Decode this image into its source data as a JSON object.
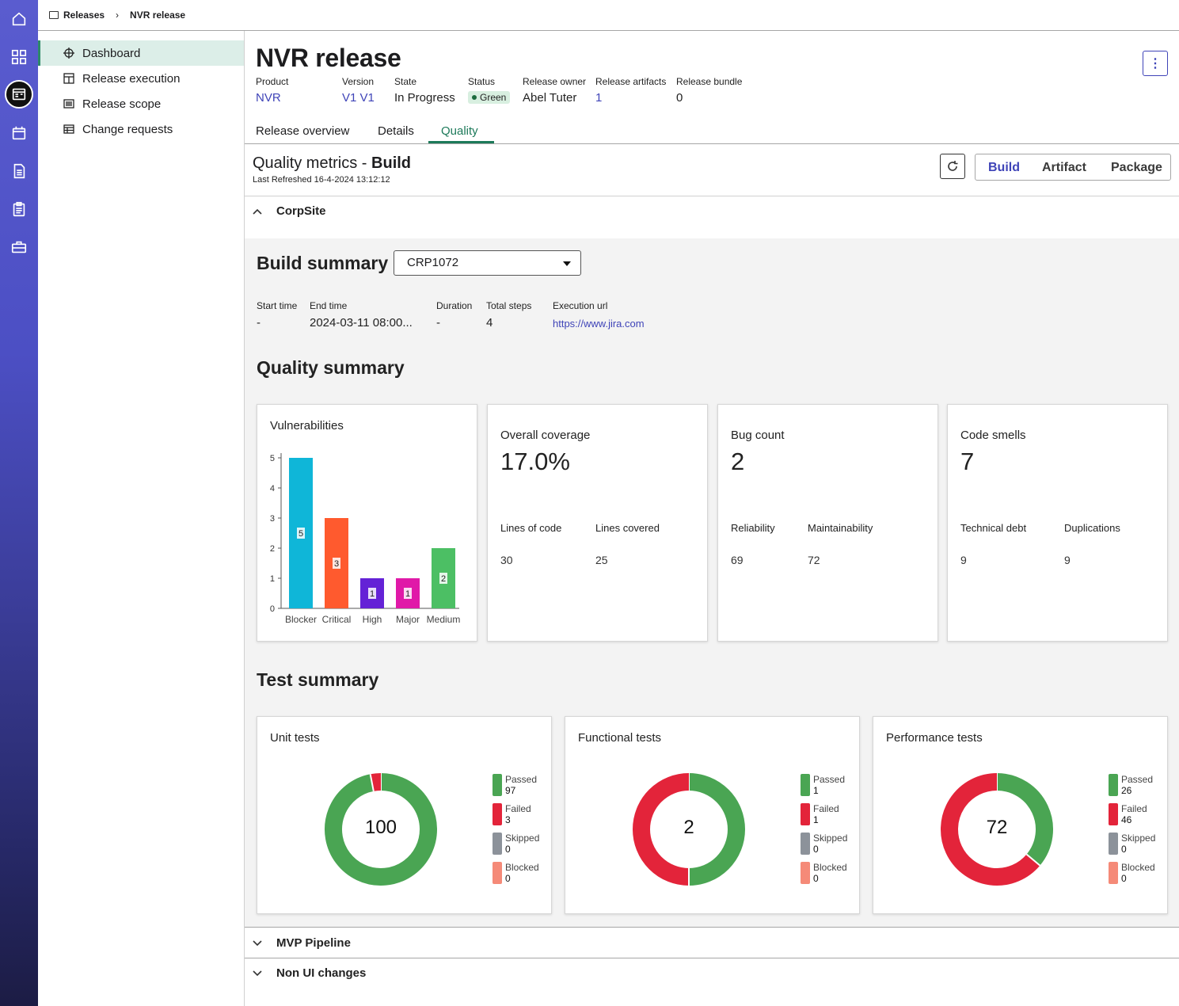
{
  "breadcrumb": {
    "root": "Releases",
    "current": "NVR release"
  },
  "sidebar": {
    "items": [
      {
        "label": "Dashboard",
        "icon": "crosshair-icon",
        "active": true
      },
      {
        "label": "Release execution",
        "icon": "layout-icon"
      },
      {
        "label": "Release scope",
        "icon": "list-icon"
      },
      {
        "label": "Change requests",
        "icon": "grid-table-icon"
      }
    ]
  },
  "release": {
    "title": "NVR release",
    "product_label": "Product",
    "product": "NVR",
    "version_label": "Version",
    "version": "V1 V1",
    "state_label": "State",
    "state": "In Progress",
    "status_label": "Status",
    "status": "Green",
    "owner_label": "Release owner",
    "owner": "Abel Tuter",
    "artifacts_label": "Release artifacts",
    "artifacts": "1",
    "bundle_label": "Release bundle",
    "bundle": "0"
  },
  "tabs": {
    "overview": "Release overview",
    "details": "Details",
    "quality": "Quality"
  },
  "quality": {
    "title_prefix": "Quality metrics -",
    "title_scope": "Build",
    "last_refreshed": "Last Refreshed 16-4-2024 13:12:12",
    "segments": {
      "build": "Build",
      "artifact": "Artifact",
      "package": "Package"
    }
  },
  "sections": {
    "corpsite": "CorpSite",
    "mvp": "MVP Pipeline",
    "nonui": "Non UI changes"
  },
  "build_summary": {
    "heading": "Build summary",
    "selected_build": "CRP1072",
    "start_label": "Start time",
    "start": "-",
    "end_label": "End time",
    "end": "2024-03-11 08:00...",
    "duration_label": "Duration",
    "duration": "-",
    "steps_label": "Total steps",
    "steps": "4",
    "url_label": "Execution url",
    "url": "https://www.jira.com"
  },
  "quality_summary": {
    "heading": "Quality summary",
    "vulnerabilities_title": "Vulnerabilities",
    "coverage": {
      "title": "Overall coverage",
      "value": "17.0%",
      "l1": "Lines of code",
      "v1": "30",
      "l2": "Lines covered",
      "v2": "25"
    },
    "bugs": {
      "title": "Bug count",
      "value": "2",
      "l1": "Reliability",
      "v1": "69",
      "l2": "Maintainability",
      "v2": "72"
    },
    "smells": {
      "title": "Code smells",
      "value": "7",
      "l1": "Technical debt",
      "v1": "9",
      "l2": "Duplications",
      "v2": "9"
    }
  },
  "test_summary": {
    "heading": "Test summary",
    "unit": {
      "title": "Unit tests",
      "total": "100",
      "passed": "97",
      "failed": "3",
      "skipped": "0",
      "blocked": "0"
    },
    "functional": {
      "title": "Functional tests",
      "total": "2",
      "passed": "1",
      "failed": "1",
      "skipped": "0",
      "blocked": "0"
    },
    "performance": {
      "title": "Performance tests",
      "total": "72",
      "passed": "26",
      "failed": "46",
      "skipped": "0",
      "blocked": "0"
    },
    "legend_labels": {
      "passed": "Passed",
      "failed": "Failed",
      "skipped": "Skipped",
      "blocked": "Blocked"
    }
  },
  "colors": {
    "accent": "#3f44b8",
    "tab_active": "#1d7a5a",
    "passed": "#4aa553",
    "failed": "#e3243a",
    "skipped": "#8c929a",
    "blocked": "#f58a78"
  },
  "chart_data": [
    {
      "type": "bar",
      "title": "Vulnerabilities",
      "categories": [
        "Blocker",
        "Critical",
        "High",
        "Major",
        "Medium"
      ],
      "values": [
        5,
        3,
        1,
        1,
        2
      ],
      "colors": [
        "#0fb6d8",
        "#ff5a2e",
        "#6422d6",
        "#e019a8",
        "#4cbf64"
      ],
      "ylim": [
        0,
        5
      ],
      "yticks": [
        0,
        1,
        2,
        3,
        4,
        5
      ]
    },
    {
      "type": "pie",
      "title": "Unit tests",
      "categories": [
        "Passed",
        "Failed",
        "Skipped",
        "Blocked"
      ],
      "values": [
        97,
        3,
        0,
        0
      ]
    },
    {
      "type": "pie",
      "title": "Functional tests",
      "categories": [
        "Passed",
        "Failed",
        "Skipped",
        "Blocked"
      ],
      "values": [
        1,
        1,
        0,
        0
      ]
    },
    {
      "type": "pie",
      "title": "Performance tests",
      "categories": [
        "Passed",
        "Failed",
        "Skipped",
        "Blocked"
      ],
      "values": [
        26,
        46,
        0,
        0
      ]
    }
  ]
}
